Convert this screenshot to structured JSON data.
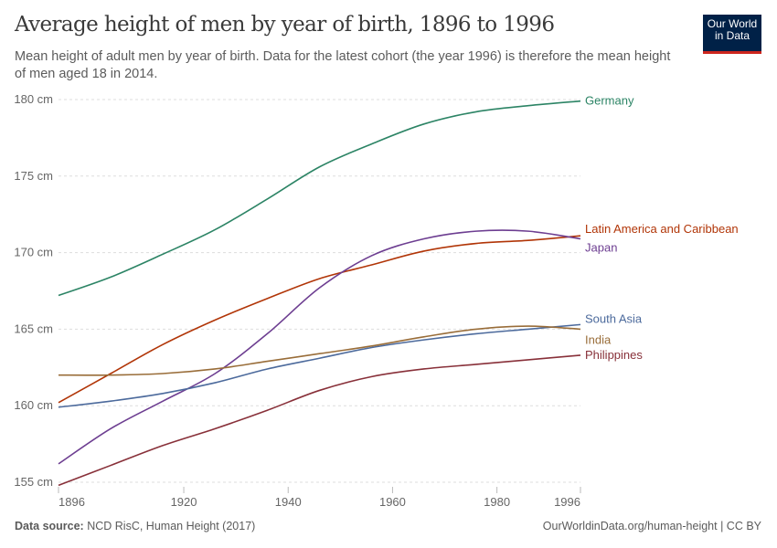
{
  "header": {
    "title": "Average height of men by year of birth, 1896 to 1996",
    "subtitle": "Mean height of adult men by year of birth. Data for the latest cohort (the year 1996) is therefore the mean height of men aged 18 in 2014.",
    "logo": "Our World in Data"
  },
  "footer": {
    "source_label": "Data source:",
    "source": "NCD RisC, Human Height (2017)",
    "url": "OurWorldinData.org/human-height | CC BY"
  },
  "chart_data": {
    "type": "line",
    "title": "Average height of men by year of birth, 1896 to 1996",
    "xlabel": "",
    "ylabel": "",
    "xlim": [
      1896,
      1996
    ],
    "ylim": [
      155,
      180
    ],
    "x_ticks": [
      "1896",
      "1920",
      "1940",
      "1960",
      "1980",
      "1996"
    ],
    "y_ticks": [
      "155 cm",
      "160 cm",
      "165 cm",
      "170 cm",
      "175 cm",
      "180 cm"
    ],
    "grid": "horizontal dashed",
    "legend": "inline-right",
    "x": [
      1896,
      1906,
      1916,
      1926,
      1936,
      1946,
      1956,
      1966,
      1976,
      1986,
      1996
    ],
    "series": [
      {
        "name": "Germany",
        "color": "#2c8465",
        "values": [
          167.2,
          168.4,
          169.9,
          171.5,
          173.5,
          175.6,
          177.1,
          178.4,
          179.2,
          179.6,
          179.9
        ]
      },
      {
        "name": "Latin America and Caribbean",
        "color": "#b13507",
        "values": [
          160.2,
          162.1,
          164.0,
          165.6,
          167.0,
          168.3,
          169.2,
          170.1,
          170.6,
          170.8,
          171.1
        ]
      },
      {
        "name": "Japan",
        "color": "#6d3e91",
        "values": [
          156.2,
          158.5,
          160.3,
          162.1,
          164.7,
          167.7,
          169.8,
          170.9,
          171.4,
          171.4,
          170.9
        ]
      },
      {
        "name": "South Asia",
        "color": "#4c6a9c",
        "values": [
          159.9,
          160.3,
          160.8,
          161.5,
          162.4,
          163.1,
          163.8,
          164.3,
          164.7,
          165.0,
          165.3
        ]
      },
      {
        "name": "India",
        "color": "#996d39",
        "values": [
          162.0,
          162.0,
          162.1,
          162.4,
          162.9,
          163.4,
          163.9,
          164.5,
          165.0,
          165.2,
          165.0
        ]
      },
      {
        "name": "Philippines",
        "color": "#883039",
        "values": [
          154.8,
          156.1,
          157.4,
          158.5,
          159.7,
          161.0,
          161.9,
          162.4,
          162.7,
          163.0,
          163.3
        ]
      }
    ]
  }
}
